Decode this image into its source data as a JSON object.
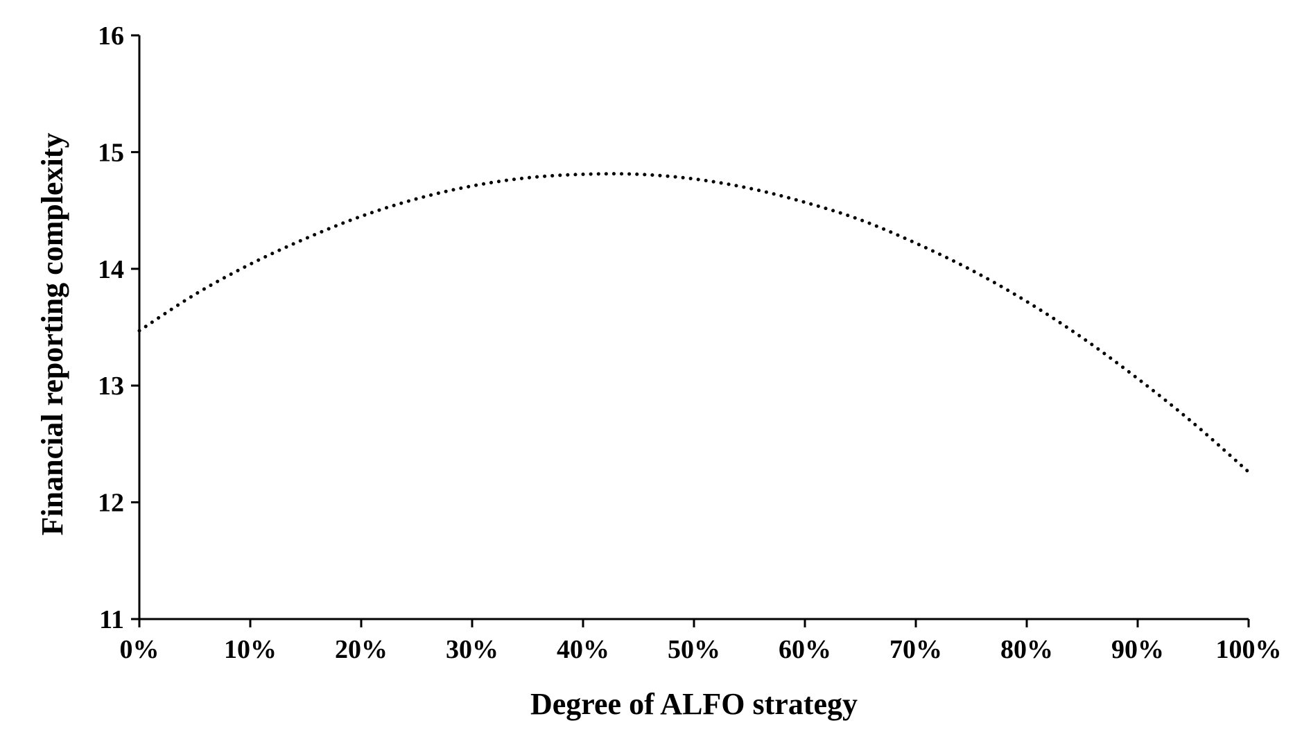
{
  "chart_data": {
    "type": "line",
    "title": "",
    "xlabel": "Degree of ALFO strategy",
    "ylabel": "Financial reporting complexity",
    "xlim": [
      0,
      100
    ],
    "ylim": [
      11,
      16
    ],
    "x_ticks": [
      0,
      10,
      20,
      30,
      40,
      50,
      60,
      70,
      80,
      90,
      100
    ],
    "x_tick_labels": [
      "0%",
      "10%",
      "20%",
      "30%",
      "40%",
      "50%",
      "60%",
      "70%",
      "80%",
      "90%",
      "100%"
    ],
    "y_ticks": [
      11,
      12,
      13,
      14,
      15,
      16
    ],
    "y_tick_labels": [
      "11",
      "12",
      "13",
      "14",
      "15",
      "16"
    ],
    "grid": false,
    "line_style": "dotted",
    "line_color": "#000000",
    "series": [
      {
        "x": [
          0,
          5,
          10,
          15,
          20,
          25,
          30,
          35,
          40,
          45,
          50,
          55,
          60,
          65,
          70,
          75,
          80,
          85,
          90,
          95,
          100
        ],
        "values": [
          13.47,
          13.78,
          14.04,
          14.26,
          14.45,
          14.6,
          14.71,
          14.78,
          14.81,
          14.81,
          14.77,
          14.69,
          14.57,
          14.42,
          14.22,
          13.99,
          13.72,
          13.41,
          13.06,
          12.68,
          12.26
        ]
      }
    ]
  }
}
